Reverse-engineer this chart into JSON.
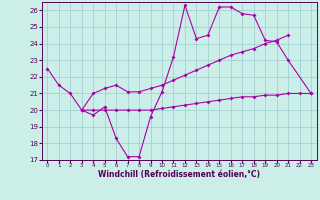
{
  "xlabel": "Windchill (Refroidissement éolien,°C)",
  "bg_color": "#cceee8",
  "grid_color": "#99cccc",
  "line_color": "#aa00aa",
  "xlim": [
    -0.5,
    23.5
  ],
  "ylim": [
    17,
    26.5
  ],
  "yticks": [
    17,
    18,
    19,
    20,
    21,
    22,
    23,
    24,
    25,
    26
  ],
  "xticks": [
    0,
    1,
    2,
    3,
    4,
    5,
    6,
    7,
    8,
    9,
    10,
    11,
    12,
    13,
    14,
    15,
    16,
    17,
    18,
    19,
    20,
    21,
    22,
    23
  ],
  "series1_x": [
    0,
    1,
    2,
    3,
    4,
    5,
    6,
    7,
    8,
    9,
    10,
    11,
    12,
    13,
    14,
    15,
    16,
    17,
    18,
    19,
    20,
    21,
    23
  ],
  "series1_y": [
    22.5,
    21.5,
    21.0,
    20.0,
    19.7,
    20.2,
    18.3,
    17.2,
    17.2,
    19.6,
    21.1,
    23.2,
    26.3,
    24.3,
    24.5,
    26.2,
    26.2,
    25.8,
    25.7,
    24.2,
    24.1,
    23.0,
    21.0
  ],
  "series2_x": [
    3,
    4,
    5,
    6,
    7,
    8,
    9,
    10,
    11,
    12,
    13,
    14,
    15,
    16,
    17,
    18,
    19,
    20,
    21,
    22,
    23
  ],
  "series2_y": [
    20.0,
    20.0,
    20.0,
    20.0,
    20.0,
    20.0,
    20.0,
    20.1,
    20.2,
    20.3,
    20.4,
    20.5,
    20.6,
    20.7,
    20.8,
    20.8,
    20.9,
    20.9,
    21.0,
    21.0,
    21.0
  ],
  "series3_x": [
    3,
    4,
    5,
    6,
    7,
    8,
    9,
    10,
    11,
    12,
    13,
    14,
    15,
    16,
    17,
    18,
    19,
    20,
    21
  ],
  "series3_y": [
    20.0,
    21.0,
    21.3,
    21.5,
    21.1,
    21.1,
    21.3,
    21.5,
    21.8,
    22.1,
    22.4,
    22.7,
    23.0,
    23.3,
    23.5,
    23.7,
    24.0,
    24.2,
    24.5
  ]
}
